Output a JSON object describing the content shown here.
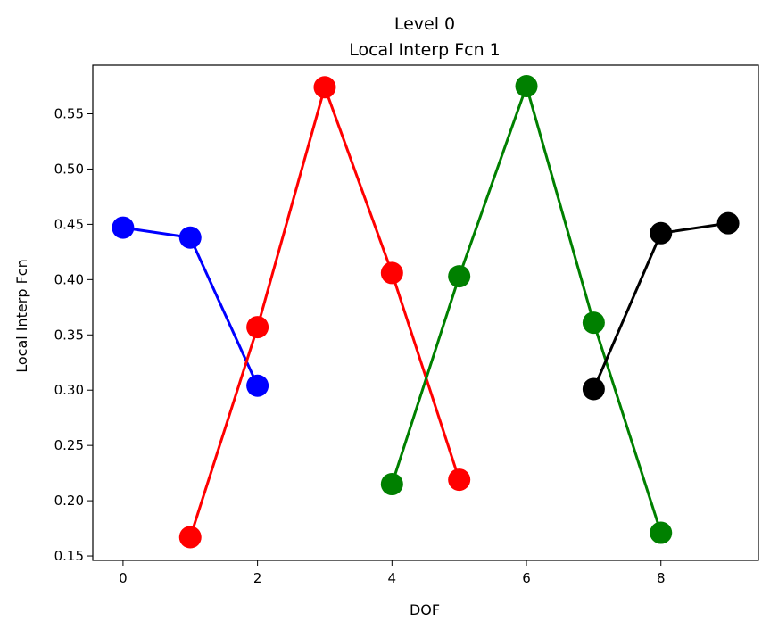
{
  "chart_data": {
    "type": "line",
    "title": "Level 0",
    "subtitle": "Local Interp Fcn 1",
    "xlabel": "DOF",
    "ylabel": "Local Interp Fcn",
    "xlim": [
      -0.45,
      9.45
    ],
    "ylim": [
      0.146,
      0.594
    ],
    "xticks": [
      0,
      2,
      4,
      6,
      8
    ],
    "yticks": [
      0.15,
      0.2,
      0.25,
      0.3,
      0.35,
      0.4,
      0.45,
      0.5,
      0.55
    ],
    "grid": false,
    "legend": "none",
    "series": [
      {
        "color": "#0000ff",
        "x": [
          0,
          1,
          2
        ],
        "y": [
          0.447,
          0.438,
          0.304
        ]
      },
      {
        "color": "#ff0000",
        "x": [
          1,
          2,
          3,
          4,
          5
        ],
        "y": [
          0.167,
          0.357,
          0.574,
          0.406,
          0.219
        ]
      },
      {
        "color": "#008000",
        "x": [
          4,
          5,
          6,
          7,
          8
        ],
        "y": [
          0.215,
          0.403,
          0.575,
          0.361,
          0.171
        ]
      },
      {
        "color": "#000000",
        "x": [
          7,
          8,
          9
        ],
        "y": [
          0.301,
          0.442,
          0.451
        ]
      }
    ]
  }
}
